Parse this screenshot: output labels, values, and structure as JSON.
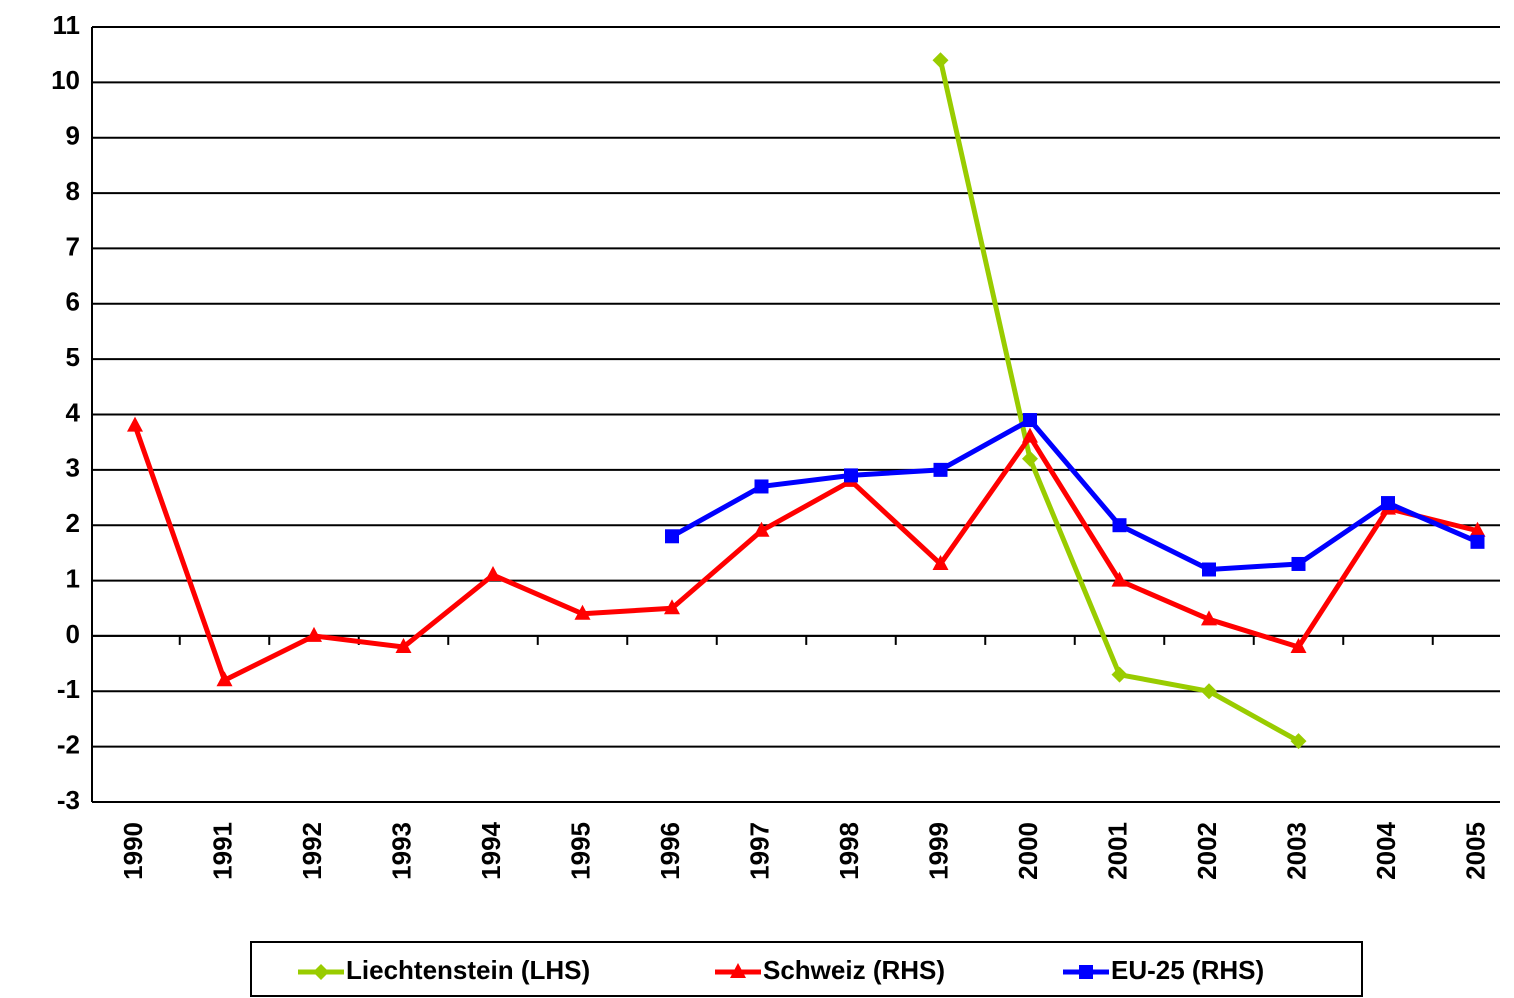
{
  "chart_data": {
    "type": "line",
    "categories": [
      "1990",
      "1991",
      "1992",
      "1993",
      "1994",
      "1995",
      "1996",
      "1997",
      "1998",
      "1999",
      "2000",
      "2001",
      "2002",
      "2003",
      "2004",
      "2005"
    ],
    "series": [
      {
        "name": "Liechtenstein (LHS)",
        "color": "#99cc00",
        "marker": "diamond",
        "values": [
          null,
          null,
          null,
          null,
          null,
          null,
          null,
          null,
          null,
          10.4,
          3.2,
          -0.7,
          -1.0,
          -1.9,
          null,
          null
        ]
      },
      {
        "name": "Schweiz (RHS)",
        "color": "#ff0000",
        "marker": "triangle",
        "values": [
          3.8,
          -0.8,
          0.0,
          -0.2,
          1.1,
          0.4,
          0.5,
          1.9,
          2.8,
          1.3,
          3.6,
          1.0,
          0.3,
          -0.2,
          2.3,
          1.9
        ]
      },
      {
        "name": "EU-25 (RHS)",
        "color": "#0000ff",
        "marker": "square",
        "values": [
          null,
          null,
          null,
          null,
          null,
          null,
          1.8,
          2.7,
          2.9,
          3.0,
          3.9,
          2.0,
          1.2,
          1.3,
          2.4,
          1.7
        ]
      }
    ],
    "ylim": [
      -3,
      11
    ],
    "yticks": [
      -3,
      -2,
      -1,
      0,
      1,
      2,
      3,
      4,
      5,
      6,
      7,
      8,
      9,
      10,
      11
    ],
    "grid": true,
    "legend": "bottom"
  }
}
